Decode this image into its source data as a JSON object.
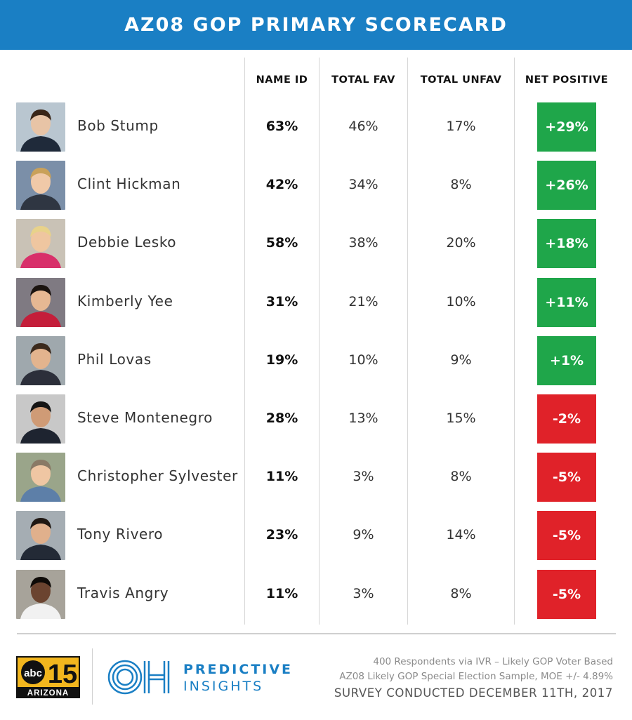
{
  "title": "AZ08 GOP PRIMARY SCORECARD",
  "colors": {
    "header": "#1a7fc4",
    "positive": "#1fa64a",
    "negative": "#e02229"
  },
  "chart_data": {
    "type": "table",
    "columns": [
      "NAME ID",
      "TOTAL FAV",
      "TOTAL UNFAV",
      "NET POSITIVE"
    ],
    "rows": [
      {
        "name": "Bob Stump",
        "name_id": "63%",
        "fav": "46%",
        "unfav": "17%",
        "net": "+29%",
        "net_value": 29
      },
      {
        "name": "Clint Hickman",
        "name_id": "42%",
        "fav": "34%",
        "unfav": "8%",
        "net": "+26%",
        "net_value": 26
      },
      {
        "name": "Debbie Lesko",
        "name_id": "58%",
        "fav": "38%",
        "unfav": "20%",
        "net": "+18%",
        "net_value": 18
      },
      {
        "name": "Kimberly Yee",
        "name_id": "31%",
        "fav": "21%",
        "unfav": "10%",
        "net": "+11%",
        "net_value": 11
      },
      {
        "name": "Phil Lovas",
        "name_id": "19%",
        "fav": "10%",
        "unfav": "9%",
        "net": "+1%",
        "net_value": 1
      },
      {
        "name": "Steve Montenegro",
        "name_id": "28%",
        "fav": "13%",
        "unfav": "15%",
        "net": "-2%",
        "net_value": -2
      },
      {
        "name": "Christopher Sylvester",
        "name_id": "11%",
        "fav": "3%",
        "unfav": "8%",
        "net": "-5%",
        "net_value": -5
      },
      {
        "name": "Tony Rivero",
        "name_id": "23%",
        "fav": "9%",
        "unfav": "14%",
        "net": "-5%",
        "net_value": -5
      },
      {
        "name": "Travis Angry",
        "name_id": "11%",
        "fav": "3%",
        "unfav": "8%",
        "net": "-5%",
        "net_value": -5
      }
    ]
  },
  "footer": {
    "abc_logo": {
      "network": "abc",
      "channel": "15",
      "region": "ARIZONA"
    },
    "pi_logo": {
      "mark": "OH",
      "line1": "PREDICTIVE",
      "line2": "INSIGHTS"
    },
    "note_line1": "400 Respondents via IVR – Likely GOP Voter Based",
    "note_line2": "AZ08 Likely GOP Special Election Sample, MOE +/- 4.89%",
    "survey_date": "SURVEY CONDUCTED DECEMBER 11TH, 2017"
  }
}
